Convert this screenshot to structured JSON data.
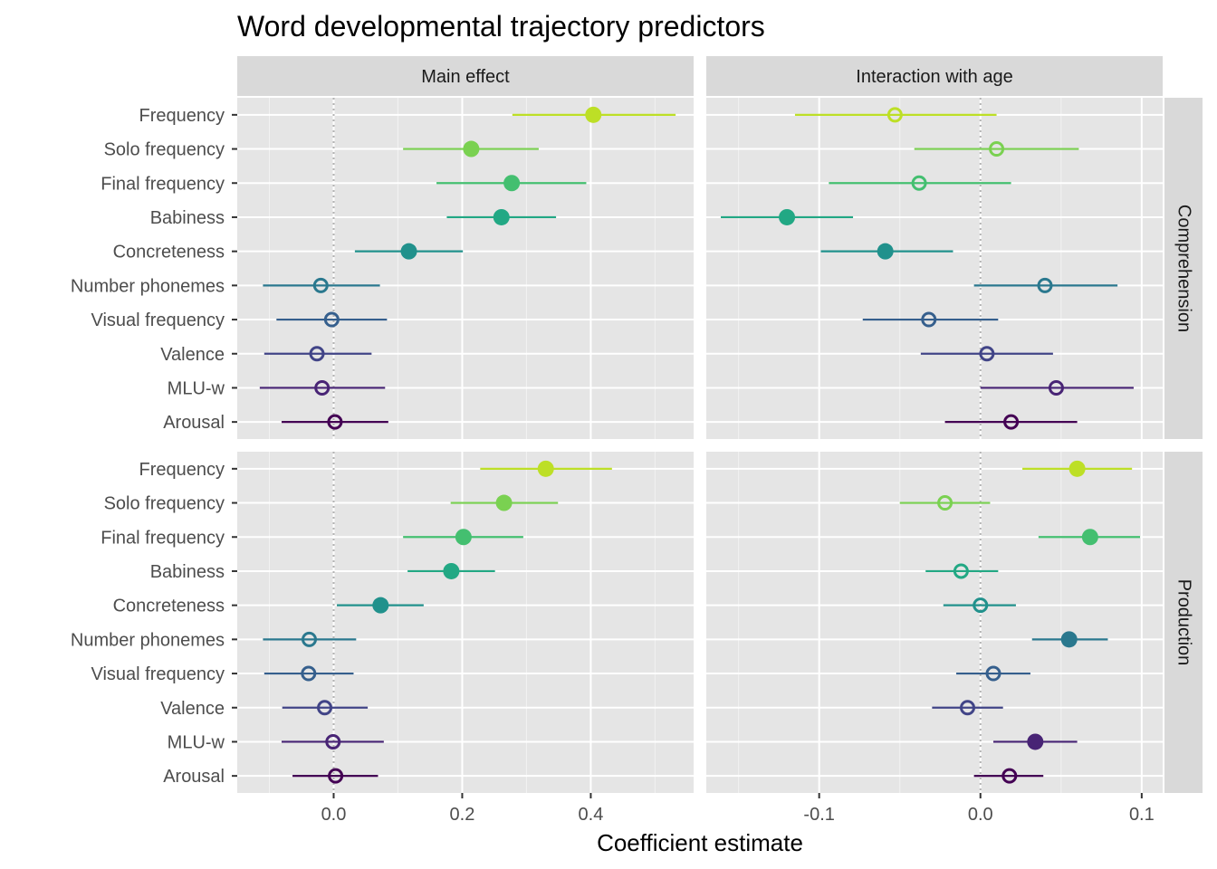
{
  "chart_data": {
    "type": "scatter",
    "subtype": "faceted coefficient plot with error bars",
    "title": "Word developmental trajectory predictors",
    "xlabel": "Coefficient estimate",
    "ylabel": "",
    "facet_columns": [
      "Main effect",
      "Interaction with age"
    ],
    "facet_rows": [
      "Comprehension",
      "Production"
    ],
    "categories": [
      "Frequency",
      "Solo frequency",
      "Final frequency",
      "Babiness",
      "Concreteness",
      "Number phonemes",
      "Visual frequency",
      "Valence",
      "MLU-w",
      "Arousal"
    ],
    "category_colors": [
      "#bddf26",
      "#7ad151",
      "#44bf70",
      "#22a884",
      "#21918c",
      "#2a788e",
      "#355f8d",
      "#414487",
      "#482475",
      "#440154"
    ],
    "reference_line_x": 0,
    "grid": true,
    "filled_marker_meaning": "significant",
    "open_marker_meaning": "not significant",
    "panels": [
      {
        "row": "Comprehension",
        "column": "Main effect",
        "xlim": [
          -0.15,
          0.56
        ],
        "xticks": [
          0.0,
          0.2,
          0.4
        ],
        "xtick_labels": [
          "0.0",
          "0.2",
          "0.4"
        ],
        "points": [
          {
            "term": "Frequency",
            "estimate": 0.404,
            "lower": 0.278,
            "upper": 0.532,
            "significant": true
          },
          {
            "term": "Solo frequency",
            "estimate": 0.214,
            "lower": 0.108,
            "upper": 0.319,
            "significant": true
          },
          {
            "term": "Final frequency",
            "estimate": 0.277,
            "lower": 0.16,
            "upper": 0.393,
            "significant": true
          },
          {
            "term": "Babiness",
            "estimate": 0.261,
            "lower": 0.176,
            "upper": 0.346,
            "significant": true
          },
          {
            "term": "Concreteness",
            "estimate": 0.117,
            "lower": 0.033,
            "upper": 0.201,
            "significant": true
          },
          {
            "term": "Number phonemes",
            "estimate": -0.02,
            "lower": -0.11,
            "upper": 0.072,
            "significant": false
          },
          {
            "term": "Visual frequency",
            "estimate": -0.003,
            "lower": -0.089,
            "upper": 0.083,
            "significant": false
          },
          {
            "term": "Valence",
            "estimate": -0.026,
            "lower": -0.108,
            "upper": 0.059,
            "significant": false
          },
          {
            "term": "MLU-w",
            "estimate": -0.018,
            "lower": -0.115,
            "upper": 0.08,
            "significant": false
          },
          {
            "term": "Arousal",
            "estimate": 0.002,
            "lower": -0.081,
            "upper": 0.085,
            "significant": false
          }
        ]
      },
      {
        "row": "Comprehension",
        "column": "Interaction with age",
        "xlim": [
          -0.17,
          0.113
        ],
        "xticks": [
          -0.1,
          0.0,
          0.1
        ],
        "xtick_labels": [
          "-0.1",
          "0.0",
          "0.1"
        ],
        "points": [
          {
            "term": "Frequency",
            "estimate": -0.053,
            "lower": -0.115,
            "upper": 0.01,
            "significant": false
          },
          {
            "term": "Solo frequency",
            "estimate": 0.01,
            "lower": -0.041,
            "upper": 0.061,
            "significant": false
          },
          {
            "term": "Final frequency",
            "estimate": -0.038,
            "lower": -0.094,
            "upper": 0.019,
            "significant": false
          },
          {
            "term": "Babiness",
            "estimate": -0.12,
            "lower": -0.161,
            "upper": -0.079,
            "significant": true
          },
          {
            "term": "Concreteness",
            "estimate": -0.059,
            "lower": -0.099,
            "upper": -0.017,
            "significant": true
          },
          {
            "term": "Number phonemes",
            "estimate": 0.04,
            "lower": -0.004,
            "upper": 0.085,
            "significant": false
          },
          {
            "term": "Visual frequency",
            "estimate": -0.032,
            "lower": -0.073,
            "upper": 0.011,
            "significant": false
          },
          {
            "term": "Valence",
            "estimate": 0.004,
            "lower": -0.037,
            "upper": 0.045,
            "significant": false
          },
          {
            "term": "MLU-w",
            "estimate": 0.047,
            "lower": 0.0,
            "upper": 0.095,
            "significant": false
          },
          {
            "term": "Arousal",
            "estimate": 0.019,
            "lower": -0.022,
            "upper": 0.06,
            "significant": false
          }
        ]
      },
      {
        "row": "Production",
        "column": "Main effect",
        "xlim": [
          -0.15,
          0.56
        ],
        "xticks": [
          0.0,
          0.2,
          0.4
        ],
        "xtick_labels": [
          "0.0",
          "0.2",
          "0.4"
        ],
        "points": [
          {
            "term": "Frequency",
            "estimate": 0.33,
            "lower": 0.228,
            "upper": 0.433,
            "significant": true
          },
          {
            "term": "Solo frequency",
            "estimate": 0.265,
            "lower": 0.182,
            "upper": 0.349,
            "significant": true
          },
          {
            "term": "Final frequency",
            "estimate": 0.202,
            "lower": 0.108,
            "upper": 0.295,
            "significant": true
          },
          {
            "term": "Babiness",
            "estimate": 0.183,
            "lower": 0.115,
            "upper": 0.251,
            "significant": true
          },
          {
            "term": "Concreteness",
            "estimate": 0.073,
            "lower": 0.005,
            "upper": 0.14,
            "significant": true
          },
          {
            "term": "Number phonemes",
            "estimate": -0.038,
            "lower": -0.11,
            "upper": 0.035,
            "significant": false
          },
          {
            "term": "Visual frequency",
            "estimate": -0.039,
            "lower": -0.108,
            "upper": 0.031,
            "significant": false
          },
          {
            "term": "Valence",
            "estimate": -0.014,
            "lower": -0.08,
            "upper": 0.053,
            "significant": false
          },
          {
            "term": "MLU-w",
            "estimate": -0.001,
            "lower": -0.081,
            "upper": 0.078,
            "significant": false
          },
          {
            "term": "Arousal",
            "estimate": 0.003,
            "lower": -0.064,
            "upper": 0.069,
            "significant": false
          }
        ]
      },
      {
        "row": "Production",
        "column": "Interaction with age",
        "xlim": [
          -0.17,
          0.113
        ],
        "xticks": [
          -0.1,
          0.0,
          0.1
        ],
        "xtick_labels": [
          "-0.1",
          "0.0",
          "0.1"
        ],
        "points": [
          {
            "term": "Frequency",
            "estimate": 0.06,
            "lower": 0.026,
            "upper": 0.094,
            "significant": true
          },
          {
            "term": "Solo frequency",
            "estimate": -0.022,
            "lower": -0.05,
            "upper": 0.006,
            "significant": false
          },
          {
            "term": "Final frequency",
            "estimate": 0.068,
            "lower": 0.036,
            "upper": 0.099,
            "significant": true
          },
          {
            "term": "Babiness",
            "estimate": -0.012,
            "lower": -0.034,
            "upper": 0.011,
            "significant": false
          },
          {
            "term": "Concreteness",
            "estimate": 0.0,
            "lower": -0.023,
            "upper": 0.022,
            "significant": false
          },
          {
            "term": "Number phonemes",
            "estimate": 0.055,
            "lower": 0.032,
            "upper": 0.079,
            "significant": true
          },
          {
            "term": "Visual frequency",
            "estimate": 0.008,
            "lower": -0.015,
            "upper": 0.031,
            "significant": false
          },
          {
            "term": "Valence",
            "estimate": -0.008,
            "lower": -0.03,
            "upper": 0.014,
            "significant": false
          },
          {
            "term": "MLU-w",
            "estimate": 0.034,
            "lower": 0.008,
            "upper": 0.06,
            "significant": true
          },
          {
            "term": "Arousal",
            "estimate": 0.018,
            "lower": -0.004,
            "upper": 0.039,
            "significant": false
          }
        ]
      }
    ]
  }
}
